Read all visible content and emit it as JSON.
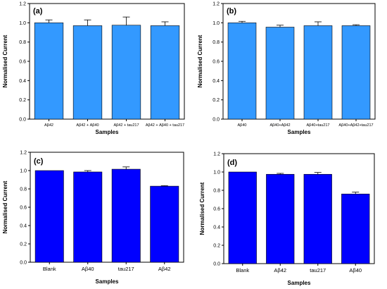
{
  "chart_data": [
    {
      "type": "bar",
      "panel_label": "(a)",
      "categories": [
        "Aβ42",
        "Aβ42 + Aβ40",
        "Aβ42 + tau217",
        "Aβ42 + Aβ40 + tau217"
      ],
      "values": [
        1.0,
        0.97,
        0.975,
        0.97
      ],
      "errors": [
        0.03,
        0.06,
        0.085,
        0.04
      ],
      "xlabel": "Samples",
      "ylabel": "Normalised Current",
      "ylim": [
        0,
        1.2
      ],
      "yticks": [
        "0.0",
        "0.2",
        "0.4",
        "0.6",
        "0.8",
        "1.0",
        "1.2"
      ],
      "bar_color": "#3399ff",
      "grid": false
    },
    {
      "type": "bar",
      "panel_label": "(b)",
      "categories": [
        "Aβ40",
        "Aβ40+Aβ42",
        "Aβ40+tau217",
        "Aβ40+Aβ42+tau217"
      ],
      "values": [
        1.0,
        0.955,
        0.97,
        0.97
      ],
      "errors": [
        0.015,
        0.02,
        0.04,
        0.01
      ],
      "xlabel": "Samples",
      "ylabel": "Normalised Current",
      "ylim": [
        0,
        1.2
      ],
      "yticks": [
        "0.0",
        "0.2",
        "0.4",
        "0.6",
        "0.8",
        "1.0",
        "1.2"
      ],
      "bar_color": "#3399ff",
      "grid": false
    },
    {
      "type": "bar",
      "panel_label": "(c)",
      "categories": [
        "Blank",
        "Aβ40",
        "tau217",
        "Aβ42"
      ],
      "values": [
        1.0,
        0.985,
        1.015,
        0.83
      ],
      "errors": [
        0.0,
        0.015,
        0.025,
        0.005
      ],
      "xlabel": "Samples",
      "ylabel": "Normalised Current",
      "ylim": [
        0,
        1.2
      ],
      "yticks": [
        "0.0",
        "0.2",
        "0.4",
        "0.6",
        "0.8",
        "1.0",
        "1.2"
      ],
      "bar_color": "#0000ff",
      "grid": false
    },
    {
      "type": "bar",
      "panel_label": "(d)",
      "categories": [
        "Blank",
        "Aβ42",
        "tau217",
        "Aβ40"
      ],
      "values": [
        1.0,
        0.975,
        0.975,
        0.76
      ],
      "errors": [
        0.0,
        0.01,
        0.02,
        0.02
      ],
      "xlabel": "Samples",
      "ylabel": "Normalised Current",
      "ylim": [
        0,
        1.2
      ],
      "yticks": [
        "0.0",
        "0.2",
        "0.4",
        "0.6",
        "0.8",
        "1.0",
        "1.2"
      ],
      "bar_color": "#0000ff",
      "grid": false
    }
  ]
}
